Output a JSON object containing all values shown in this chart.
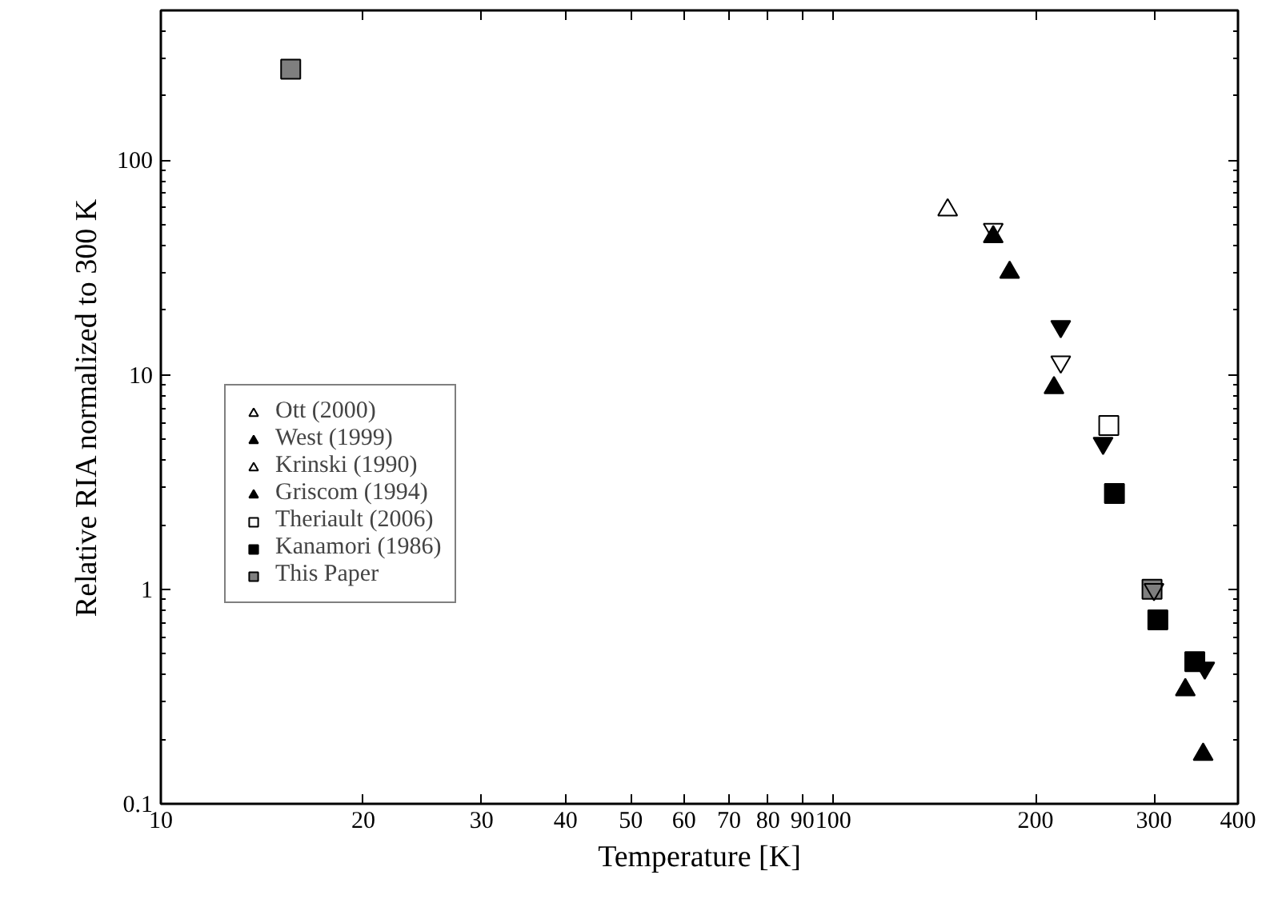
{
  "chart_data": {
    "type": "scatter",
    "xlabel": "Temperature [K]",
    "ylabel": "Relative RIA normalized to 300 K",
    "log": "xy",
    "xlim": [
      10,
      400
    ],
    "ylim": [
      0.1,
      500
    ],
    "xticks": [
      10,
      20,
      30,
      40,
      50,
      60,
      70,
      80,
      90,
      100,
      200,
      300,
      400
    ],
    "yticks": [
      0.1,
      1,
      10,
      100
    ],
    "grid": false,
    "legend": "left",
    "series": [
      {
        "name": "Ott (2000)",
        "color": "#000000",
        "marker": "triangle",
        "x": [
          148
        ],
        "values": [
          58.7
        ]
      },
      {
        "name": "West (1999)",
        "color": "#000000",
        "marker": "triangle",
        "x": [
          173,
          183,
          213,
          334,
          355
        ],
        "values": [
          44,
          30,
          8.7,
          0.34,
          0.17
        ]
      },
      {
        "name": "Krinski (1990)",
        "color": "#000000",
        "marker": "triangle",
        "x": [
          173,
          218,
          300
        ],
        "values": [
          47.7,
          11.5,
          1
        ]
      },
      {
        "name": "Griscom (1994)",
        "color": "#000000",
        "marker": "triangle",
        "x": [
          218,
          252,
          357
        ],
        "values": [
          16.8,
          4.8,
          0.43
        ]
      },
      {
        "name": "Theriault (2006)",
        "color": "#000000",
        "marker": "square",
        "x": [
          257
        ],
        "values": [
          5.8
        ]
      },
      {
        "name": "Kanamori (1986)",
        "color": "#000000",
        "marker": "square",
        "x": [
          262,
          304,
          345
        ],
        "values": [
          2.8,
          0.72,
          0.46
        ]
      },
      {
        "name": "This Paper",
        "color": "#000000",
        "marker": "square",
        "x": [
          15.6,
          298
        ],
        "values": [
          266,
          1
        ]
      }
    ]
  }
}
